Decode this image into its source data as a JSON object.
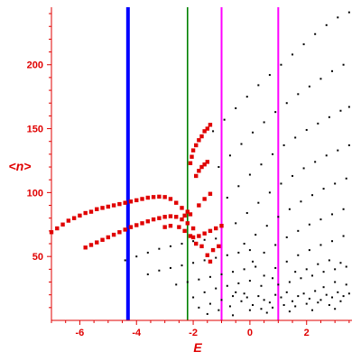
{
  "chart_data": {
    "type": "scatter",
    "xlabel": "E",
    "ylabel": "<n>",
    "xlim": [
      -7,
      3.6
    ],
    "ylim": [
      0,
      245
    ],
    "xticks": [
      -6,
      -4,
      -2,
      0,
      2
    ],
    "yticks": [
      50,
      100,
      150,
      200
    ],
    "xtick_labels": [
      "-6",
      "-4",
      "-2",
      "0",
      "2"
    ],
    "ytick_labels": [
      "50",
      "100",
      "150",
      "200"
    ],
    "grid": false,
    "legend": "none",
    "axis_color": "#e00000",
    "vertical_lines": [
      {
        "x": -4.3,
        "color": "#0000ff",
        "width": "thick"
      },
      {
        "x": -2.2,
        "color": "#008000",
        "width": "thin"
      },
      {
        "x": -1.0,
        "color": "#ff00ff",
        "width": "medium"
      },
      {
        "x": 1.0,
        "color": "#ff00ff",
        "width": "medium"
      }
    ],
    "series": [
      {
        "color": "#e00000",
        "marker": "square",
        "points": [
          [
            -7.0,
            69
          ],
          [
            -6.8,
            72
          ],
          [
            -6.6,
            75
          ],
          [
            -6.4,
            78
          ],
          [
            -6.2,
            80
          ],
          [
            -6.0,
            82
          ],
          [
            -5.8,
            84
          ],
          [
            -5.6,
            85
          ],
          [
            -5.4,
            87
          ],
          [
            -5.2,
            88
          ],
          [
            -5.0,
            89
          ],
          [
            -4.8,
            90
          ],
          [
            -4.6,
            91
          ],
          [
            -4.4,
            92
          ],
          [
            -4.2,
            93
          ],
          [
            -4.0,
            94
          ],
          [
            -3.8,
            95
          ],
          [
            -3.6,
            96
          ],
          [
            -3.4,
            96.5
          ],
          [
            -3.2,
            96.8
          ],
          [
            -3.0,
            96.5
          ],
          [
            -2.8,
            95
          ],
          [
            -2.6,
            92
          ],
          [
            -2.4,
            88
          ],
          [
            -2.2,
            85
          ],
          [
            -2.1,
            83
          ],
          [
            -5.8,
            57
          ],
          [
            -5.6,
            59
          ],
          [
            -5.4,
            61
          ],
          [
            -5.2,
            63
          ],
          [
            -5.0,
            65
          ],
          [
            -4.8,
            67
          ],
          [
            -4.6,
            69
          ],
          [
            -4.4,
            71
          ],
          [
            -4.2,
            73
          ],
          [
            -4.0,
            74.5
          ],
          [
            -3.8,
            76
          ],
          [
            -3.6,
            77.5
          ],
          [
            -3.4,
            79
          ],
          [
            -3.2,
            80
          ],
          [
            -3.0,
            81
          ],
          [
            -2.8,
            81.5
          ],
          [
            -2.6,
            81
          ],
          [
            -2.4,
            79
          ],
          [
            -2.2,
            76
          ],
          [
            -2.0,
            72
          ],
          [
            -1.8,
            66
          ],
          [
            -3.0,
            73
          ],
          [
            -2.8,
            74
          ],
          [
            -2.5,
            73
          ],
          [
            -2.3,
            70
          ],
          [
            -2.1,
            66
          ],
          [
            -1.9,
            60
          ],
          [
            -2.1,
            123
          ],
          [
            -2.05,
            128
          ],
          [
            -2.0,
            133
          ],
          [
            -1.9,
            137
          ],
          [
            -1.8,
            141
          ],
          [
            -1.7,
            144
          ],
          [
            -1.6,
            148
          ],
          [
            -1.5,
            150
          ],
          [
            -1.4,
            153
          ],
          [
            -1.9,
            113
          ],
          [
            -1.8,
            117
          ],
          [
            -1.7,
            120
          ],
          [
            -1.6,
            122
          ],
          [
            -1.5,
            124
          ],
          [
            -1.8,
            90
          ],
          [
            -1.6,
            95
          ],
          [
            -1.4,
            99
          ],
          [
            -1.6,
            68
          ],
          [
            -1.4,
            70
          ],
          [
            -1.2,
            72
          ],
          [
            -1.0,
            74
          ],
          [
            -1.5,
            51
          ],
          [
            -1.3,
            55
          ],
          [
            -1.1,
            58
          ],
          [
            -2.3,
            82
          ],
          [
            -2.0,
            65
          ],
          [
            -1.7,
            58
          ],
          [
            -1.4,
            46
          ]
        ]
      },
      {
        "color": "#000000",
        "marker": "dot",
        "points": [
          [
            -1.3,
            148
          ],
          [
            -0.9,
            157
          ],
          [
            -0.5,
            166
          ],
          [
            -0.1,
            175
          ],
          [
            0.3,
            184
          ],
          [
            0.7,
            192
          ],
          [
            1.1,
            200
          ],
          [
            1.5,
            208
          ],
          [
            1.9,
            216
          ],
          [
            2.3,
            224
          ],
          [
            2.7,
            231
          ],
          [
            3.1,
            237
          ],
          [
            3.5,
            241
          ],
          [
            -1.1,
            120
          ],
          [
            -0.7,
            129
          ],
          [
            -0.3,
            138
          ],
          [
            0.1,
            147
          ],
          [
            0.5,
            155
          ],
          [
            0.9,
            163
          ],
          [
            1.3,
            170
          ],
          [
            1.7,
            177
          ],
          [
            2.1,
            183
          ],
          [
            2.5,
            189
          ],
          [
            2.9,
            195
          ],
          [
            3.3,
            200
          ],
          [
            -0.8,
            96
          ],
          [
            -0.4,
            105
          ],
          [
            0.0,
            114
          ],
          [
            0.4,
            122
          ],
          [
            0.8,
            130
          ],
          [
            1.2,
            137
          ],
          [
            1.6,
            143
          ],
          [
            2.0,
            149
          ],
          [
            2.4,
            154
          ],
          [
            2.8,
            159
          ],
          [
            3.2,
            164
          ],
          [
            3.5,
            167
          ],
          [
            -0.5,
            76
          ],
          [
            -0.1,
            84
          ],
          [
            0.3,
            92
          ],
          [
            0.7,
            100
          ],
          [
            1.1,
            107
          ],
          [
            1.5,
            113
          ],
          [
            1.9,
            119
          ],
          [
            2.3,
            124
          ],
          [
            2.7,
            129
          ],
          [
            3.1,
            133
          ],
          [
            3.5,
            137
          ],
          [
            -0.2,
            60
          ],
          [
            0.2,
            67
          ],
          [
            0.6,
            74
          ],
          [
            1.0,
            81
          ],
          [
            1.4,
            87
          ],
          [
            1.8,
            93
          ],
          [
            2.2,
            98
          ],
          [
            2.6,
            103
          ],
          [
            3.0,
            107
          ],
          [
            3.4,
            111
          ],
          [
            0.1,
            46
          ],
          [
            0.5,
            53
          ],
          [
            0.9,
            59
          ],
          [
            1.3,
            65
          ],
          [
            1.7,
            70
          ],
          [
            2.1,
            75
          ],
          [
            2.5,
            79
          ],
          [
            2.9,
            83
          ],
          [
            3.3,
            87
          ],
          [
            0.5,
            35
          ],
          [
            0.9,
            41
          ],
          [
            1.3,
            46
          ],
          [
            1.7,
            51
          ],
          [
            2.1,
            55
          ],
          [
            2.5,
            59
          ],
          [
            2.9,
            62
          ],
          [
            3.3,
            66
          ],
          [
            -4.4,
            47
          ],
          [
            -4.0,
            50
          ],
          [
            -3.6,
            53
          ],
          [
            -3.2,
            56
          ],
          [
            -2.8,
            58
          ],
          [
            -2.4,
            60
          ],
          [
            -2.0,
            62
          ],
          [
            -1.6,
            63
          ],
          [
            -1.2,
            64
          ],
          [
            -3.6,
            36
          ],
          [
            -3.2,
            39
          ],
          [
            -2.8,
            41
          ],
          [
            -2.4,
            43
          ],
          [
            -2.0,
            45
          ],
          [
            -1.6,
            47
          ],
          [
            -1.2,
            49
          ],
          [
            -0.8,
            51
          ],
          [
            -0.4,
            53
          ],
          [
            0.0,
            55
          ],
          [
            -2.6,
            28
          ],
          [
            -2.2,
            30
          ],
          [
            -1.8,
            32
          ],
          [
            -1.4,
            34
          ],
          [
            -1.0,
            36
          ],
          [
            -0.6,
            38
          ],
          [
            -0.2,
            40
          ],
          [
            0.2,
            42
          ],
          [
            -2.0,
            18
          ],
          [
            -1.6,
            22
          ],
          [
            -1.2,
            25
          ],
          [
            -0.8,
            27
          ],
          [
            -0.4,
            29
          ],
          [
            0.0,
            31
          ],
          [
            -1.8,
            10
          ],
          [
            -1.4,
            13
          ],
          [
            -1.0,
            16
          ],
          [
            -0.6,
            19
          ],
          [
            -0.2,
            21
          ],
          [
            -1.5,
            5
          ],
          [
            -1.1,
            8
          ],
          [
            -0.7,
            11
          ],
          [
            -0.5,
            22
          ],
          [
            -0.3,
            15
          ],
          [
            -0.1,
            18
          ],
          [
            0.1,
            12
          ],
          [
            0.3,
            19
          ],
          [
            0.5,
            16
          ],
          [
            0.7,
            14
          ],
          [
            0.9,
            20
          ],
          [
            1.1,
            18
          ],
          [
            1.3,
            22
          ],
          [
            1.5,
            15
          ],
          [
            1.7,
            19
          ],
          [
            1.9,
            21
          ],
          [
            2.1,
            17
          ],
          [
            2.3,
            23
          ],
          [
            2.5,
            16
          ],
          [
            2.7,
            20
          ],
          [
            2.9,
            18
          ],
          [
            3.1,
            22
          ],
          [
            3.3,
            19
          ],
          [
            3.5,
            21
          ],
          [
            0.0,
            8
          ],
          [
            0.4,
            9
          ],
          [
            0.8,
            10
          ],
          [
            1.2,
            12
          ],
          [
            1.6,
            11
          ],
          [
            2.0,
            13
          ],
          [
            2.4,
            14
          ],
          [
            2.8,
            12
          ],
          [
            3.2,
            15
          ],
          [
            -0.6,
            4
          ],
          [
            0.6,
            6
          ],
          [
            1.4,
            7
          ],
          [
            2.2,
            8
          ],
          [
            3.0,
            9
          ],
          [
            1.0,
            28
          ],
          [
            1.4,
            30
          ],
          [
            1.8,
            33
          ],
          [
            2.2,
            35
          ],
          [
            2.6,
            38
          ],
          [
            3.0,
            40
          ],
          [
            3.4,
            42
          ],
          [
            1.6,
            38
          ],
          [
            2.0,
            40
          ],
          [
            2.4,
            44
          ],
          [
            2.8,
            47
          ],
          [
            3.2,
            45
          ],
          [
            0.4,
            27
          ],
          [
            0.8,
            33
          ],
          [
            2.6,
            26
          ],
          [
            3.0,
            30
          ],
          [
            3.4,
            28
          ]
        ]
      }
    ]
  }
}
